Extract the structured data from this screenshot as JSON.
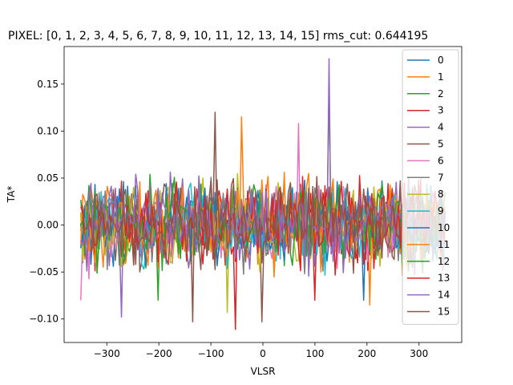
{
  "chart_data": {
    "type": "line",
    "title": "PIXEL: [0, 1, 2, 3, 4, 5, 6, 7, 8, 9, 10, 11, 12, 13, 14, 15]    rms_cut: 0.644195",
    "xlabel": "VLSR",
    "ylabel": "TA*",
    "xlim": [
      -382,
      382
    ],
    "ylim": [
      -0.125,
      0.19
    ],
    "xticks": [
      -300,
      -200,
      -100,
      0,
      100,
      200,
      300
    ],
    "xtick_labels": [
      "−300",
      "−200",
      "−100",
      "0",
      "100",
      "200",
      "300"
    ],
    "yticks": [
      -0.1,
      -0.05,
      0.0,
      0.05,
      0.1,
      0.15
    ],
    "ytick_labels": [
      "−0.10",
      "−0.05",
      "0.00",
      "0.05",
      "0.10",
      "0.15"
    ],
    "legend": "top-right",
    "grid": false,
    "x_range": [
      -350,
      350
    ],
    "noise_sigma": 0.03,
    "series": [
      {
        "name": "0",
        "color": "#1f77b4",
        "features": [
          {
            "x": 195,
            "y": -0.08
          }
        ]
      },
      {
        "name": "1",
        "color": "#ff7f0e",
        "features": [
          {
            "x": -40,
            "y": 0.115
          },
          {
            "x": 206,
            "y": -0.085
          }
        ]
      },
      {
        "name": "2",
        "color": "#2ca02c",
        "features": [
          {
            "x": 126,
            "y": 0.145
          },
          {
            "x": -200,
            "y": -0.08
          }
        ]
      },
      {
        "name": "3",
        "color": "#d62728",
        "features": [
          {
            "x": -53,
            "y": -0.111
          },
          {
            "x": 100,
            "y": -0.08
          }
        ]
      },
      {
        "name": "4",
        "color": "#9467bd",
        "features": [
          {
            "x": 128,
            "y": 0.177
          },
          {
            "x": -270,
            "y": -0.098
          }
        ]
      },
      {
        "name": "5",
        "color": "#8c564b",
        "features": [
          {
            "x": -90,
            "y": 0.12
          },
          {
            "x": -1,
            "y": -0.103
          }
        ]
      },
      {
        "name": "6",
        "color": "#e377c2",
        "features": [
          {
            "x": 70,
            "y": 0.108
          },
          {
            "x": -355,
            "y": -0.08
          }
        ]
      },
      {
        "name": "7",
        "color": "#7f7f7f",
        "features": []
      },
      {
        "name": "8",
        "color": "#bcbd22",
        "features": [
          {
            "x": -70,
            "y": -0.093
          }
        ]
      },
      {
        "name": "9",
        "color": "#17becf",
        "features": []
      },
      {
        "name": "10",
        "color": "#1f77b4",
        "features": []
      },
      {
        "name": "11",
        "color": "#ff7f0e",
        "features": []
      },
      {
        "name": "12",
        "color": "#2ca02c",
        "features": []
      },
      {
        "name": "13",
        "color": "#d62728",
        "features": []
      },
      {
        "name": "14",
        "color": "#9467bd",
        "features": []
      },
      {
        "name": "15",
        "color": "#8c564b",
        "features": [
          {
            "x": -135,
            "y": -0.103
          }
        ]
      }
    ]
  }
}
